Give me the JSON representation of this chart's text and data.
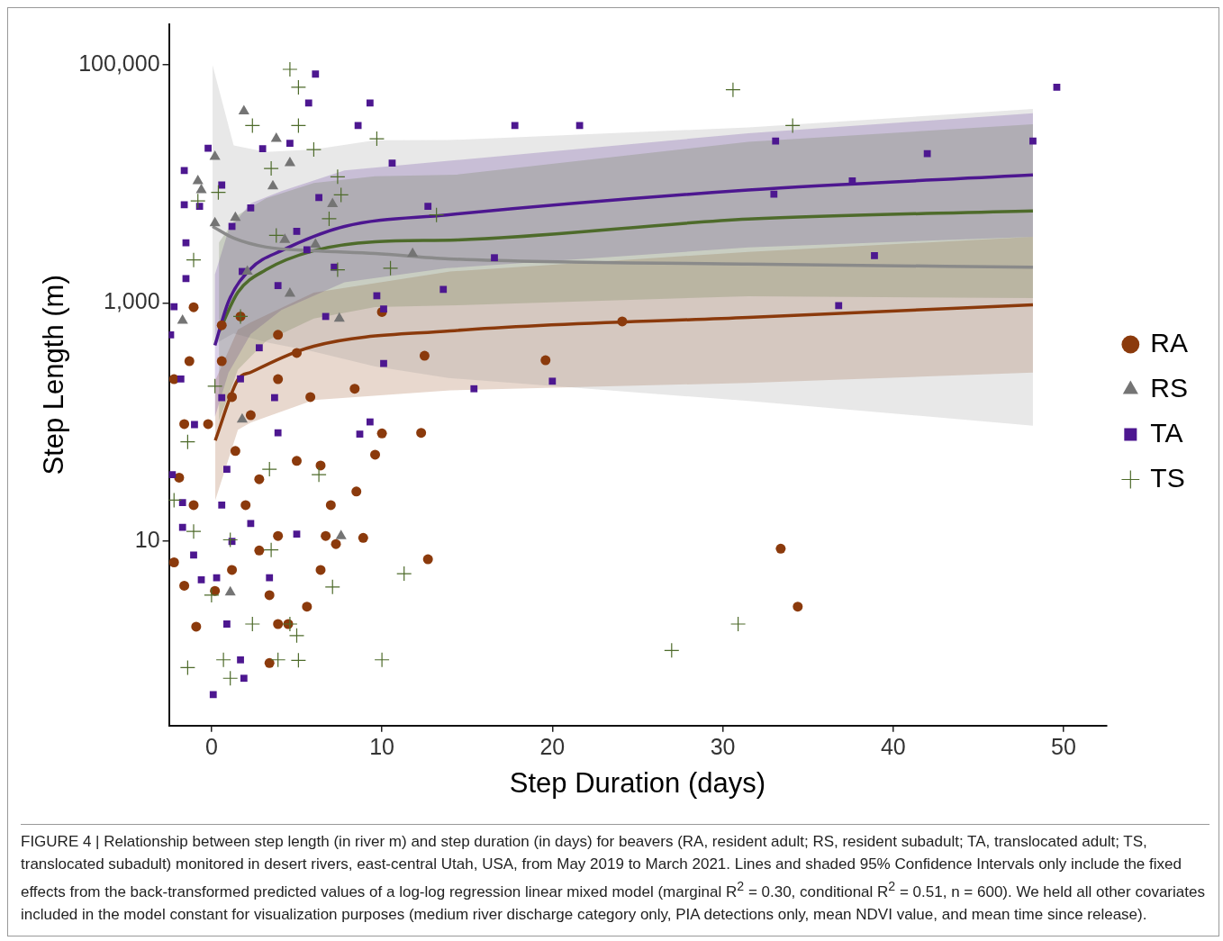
{
  "chart_data": {
    "type": "scatter",
    "xlabel": "Step Duration (days)",
    "ylabel": "Step Length (m)",
    "log": "y",
    "grid": false,
    "legend": "right",
    "xlim": [
      -2.5,
      52.5
    ],
    "xticks": [
      0,
      10,
      20,
      30,
      40,
      50
    ],
    "ylim": [
      0.28,
      220000
    ],
    "yticks": [
      10,
      {
        "value": 1000,
        "label": "1,000"
      },
      {
        "value": 100000,
        "label": "100,000"
      }
    ],
    "series": [
      {
        "name": "RA",
        "marker": "circle",
        "color": "#8b3a0c",
        "x": [
          33.4,
          34.4,
          19.6,
          24.1,
          12.5,
          12.3,
          12.7,
          10.0,
          10.0,
          9.6,
          8.9,
          8.5,
          7.3,
          6.4,
          7.0,
          6.4,
          5.8,
          5.0,
          3.9,
          5.0,
          3.4,
          3.9,
          3.4,
          2.8,
          2.0,
          1.4,
          2.3,
          1.2,
          0.6,
          0.6,
          1.7,
          -1.05,
          -1.3,
          -2.2,
          -1.6,
          -1.9,
          -1.05,
          -2.2,
          -1.6,
          -0.9,
          0.2,
          1.2,
          5.6,
          4.5,
          2.8,
          3.9,
          6.7,
          8.4,
          3.9,
          -0.2
        ],
        "values": [
          8.6,
          2.8,
          330,
          700,
          360,
          81,
          7.0,
          840,
          80,
          53,
          10.6,
          26,
          9.4,
          5.7,
          20,
          43,
          162,
          380,
          540,
          47,
          0.94,
          2.0,
          3.5,
          8.3,
          20,
          57,
          114,
          162,
          324,
          650,
          770,
          920,
          324,
          229,
          96,
          34,
          20,
          6.6,
          4.2,
          1.9,
          3.8,
          5.7,
          2.8,
          2.0,
          33,
          229,
          11,
          190,
          11,
          96
        ]
      },
      {
        "name": "RS",
        "type": "scatter",
        "marker": "triangle",
        "color": "#747474",
        "x": [
          1.9,
          3.8,
          0.2,
          -0.6,
          -0.8,
          4.6,
          6.1,
          7.1,
          11.8,
          7.5,
          4.6,
          -1.7,
          2.1,
          4.3,
          7.6,
          1.1,
          1.8,
          1.4,
          0.2,
          3.6
        ],
        "values": [
          41000,
          24000,
          17000,
          8900,
          10600,
          15000,
          3100,
          6800,
          2600,
          740,
          1200,
          710,
          1840,
          3400,
          11,
          3.7,
          105,
          5200,
          4700,
          9600
        ]
      },
      {
        "name": "TA",
        "marker": "square",
        "color": "#4d1790",
        "x": [
          6.1,
          5.7,
          9.3,
          10.6,
          17.8,
          21.6,
          33.1,
          49.6,
          48.2,
          42.0,
          37.6,
          33.0,
          38.9,
          36.8,
          16.6,
          13.6,
          12.7,
          10.1,
          9.7,
          15.4,
          20.0,
          10.1,
          9.3,
          8.7,
          5.0,
          0.1,
          1.9,
          1.7,
          0.9,
          0.3,
          -0.6,
          -1.05,
          -1.7,
          -2.3,
          -1.7,
          -1.0,
          -1.8,
          -2.4,
          -2.2,
          -1.5,
          -1.5,
          -1.6,
          -0.7,
          -1.6,
          -0.2,
          3.0,
          4.6,
          8.6,
          6.3,
          2.3,
          7.2,
          3.9,
          1.8,
          1.2,
          2.8,
          1.7,
          0.6,
          3.7,
          3.9,
          0.9,
          0.6,
          2.3,
          1.2,
          3.4,
          6.7,
          5.0,
          0.6,
          5.6
        ],
        "values": [
          84000,
          48000,
          48000,
          15000,
          31000,
          31000,
          23000,
          65000,
          23000,
          18000,
          10600,
          8200,
          2500,
          950,
          2400,
          1300,
          6500,
          890,
          1150,
          190,
          220,
          310,
          100,
          79,
          11.4,
          0.51,
          0.7,
          1.0,
          2.0,
          4.9,
          4.7,
          7.6,
          13,
          36,
          21,
          95,
          230,
          540,
          930,
          1600,
          3200,
          6700,
          6500,
          13000,
          20000,
          19800,
          22000,
          31000,
          7700,
          6300,
          2000,
          1400,
          1840,
          4400,
          420,
          230,
          160,
          160,
          81,
          40,
          20,
          14,
          9.9,
          4.9,
          770,
          4000,
          9800,
          2800
        ]
      },
      {
        "name": "TS",
        "marker": "cross",
        "color": "#4e6b2b",
        "x": [
          4.6,
          5.1,
          2.4,
          5.1,
          9.7,
          6.0,
          7.4,
          3.5,
          7.6,
          6.9,
          30.6,
          34.1,
          13.2,
          7.4,
          10.5,
          3.8,
          0.4,
          -0.8,
          -1.05,
          1.7,
          0.2,
          -1.4,
          -2.2,
          -1.05,
          0,
          -1.4,
          0.7,
          1.1,
          3.9,
          5.1,
          5.0,
          4.6,
          2.4,
          3.5,
          6.3,
          11.3,
          10.0,
          27.0,
          30.9,
          7.1,
          1.1,
          3.4
        ],
        "values": [
          92000,
          65000,
          31000,
          31000,
          24000,
          19500,
          11500,
          13500,
          8100,
          5100,
          62000,
          31000,
          5500,
          1900,
          1960,
          3700,
          8500,
          7200,
          2300,
          770,
          200,
          68,
          22,
          12,
          3.5,
          0.86,
          1.0,
          0.7,
          1.0,
          0.99,
          1.6,
          2.0,
          2.0,
          8.4,
          36,
          5.3,
          1.0,
          1.2,
          2.0,
          4.1,
          10.2,
          40
        ]
      },
      {
        "type": "line",
        "marker": "none",
        "color": "#8b3a0c",
        "x": [
          0.22,
          1.55,
          2.3,
          6.0,
          14,
          31.5,
          48.2
        ],
        "values": [
          70,
          227,
          261,
          433,
          582,
          757,
          966
        ],
        "lower": [
          22,
          86,
          99,
          153,
          184,
          213,
          260
        ],
        "upper": [
          223,
          597,
          687,
          1220,
          1840,
          2690,
          3590
        ]
      },
      {
        "type": "line",
        "marker": "none",
        "color": "#8a8a8a",
        "x": [
          0.06,
          1.3,
          3.2,
          6.0,
          9.6,
          13.9,
          31.5,
          48.2
        ],
        "values": [
          4400,
          3510,
          2950,
          2750,
          2610,
          2350,
          2120,
          2000
        ],
        "lower": [
          441,
          556,
          468,
          389,
          293,
          234,
          150,
          93
        ],
        "upper": [
          100000,
          21100,
          18600,
          19500,
          23300,
          23400,
          29900,
          42700
        ]
      },
      {
        "type": "line",
        "marker": "none",
        "color": "#4d1790",
        "x": [
          0.2,
          1,
          2.3,
          4.1,
          7.8,
          13.8,
          31.5,
          48.2
        ],
        "values": [
          440,
          1030,
          1940,
          2750,
          4400,
          5500,
          8900,
          11900
        ],
        "lower": [
          110,
          260,
          547,
          871,
          1490,
          1960,
          2930,
          3600
        ],
        "upper": [
          1740,
          4120,
          6890,
          8710,
          13000,
          15600,
          26700,
          39400
        ]
      },
      {
        "type": "line",
        "marker": "none",
        "color": "#4e6b2b",
        "x": [
          0.44,
          1.55,
          3.2,
          6.0,
          9.6,
          14.4,
          31.5,
          48.2
        ],
        "values": [
          573,
          1230,
          1900,
          2750,
          3270,
          3390,
          5070,
          5930
        ],
        "lower": [
          102,
          275,
          479,
          741,
          923,
          955,
          1140,
          1100
        ],
        "upper": [
          3220,
          5500,
          7590,
          10200,
          11600,
          12000,
          22600,
          31800
        ]
      }
    ],
    "annotations": [
      "FIGURE 4 | Relationship between step length (in river m) and step duration (in days) for beavers (RA, resident adult; RS, resident subadult; TA, translocated adult; TS, translocated subadult) monitored in desert rivers, east-central Utah, USA, from May 2019 to March 2021. Lines and shaded 95% Confidence Intervals only include the fixed effects from the back-transformed predicted values of a log-log regression linear mixed model (marginal R$^{2}$ = 0.30, conditional R$^{2}$ = 0.51, n = 600). We held all other covariates included in the model constant for visualization purposes (medium river discharge category only, PIA detections only, mean NDVI value, and mean time since release)."
    ]
  }
}
